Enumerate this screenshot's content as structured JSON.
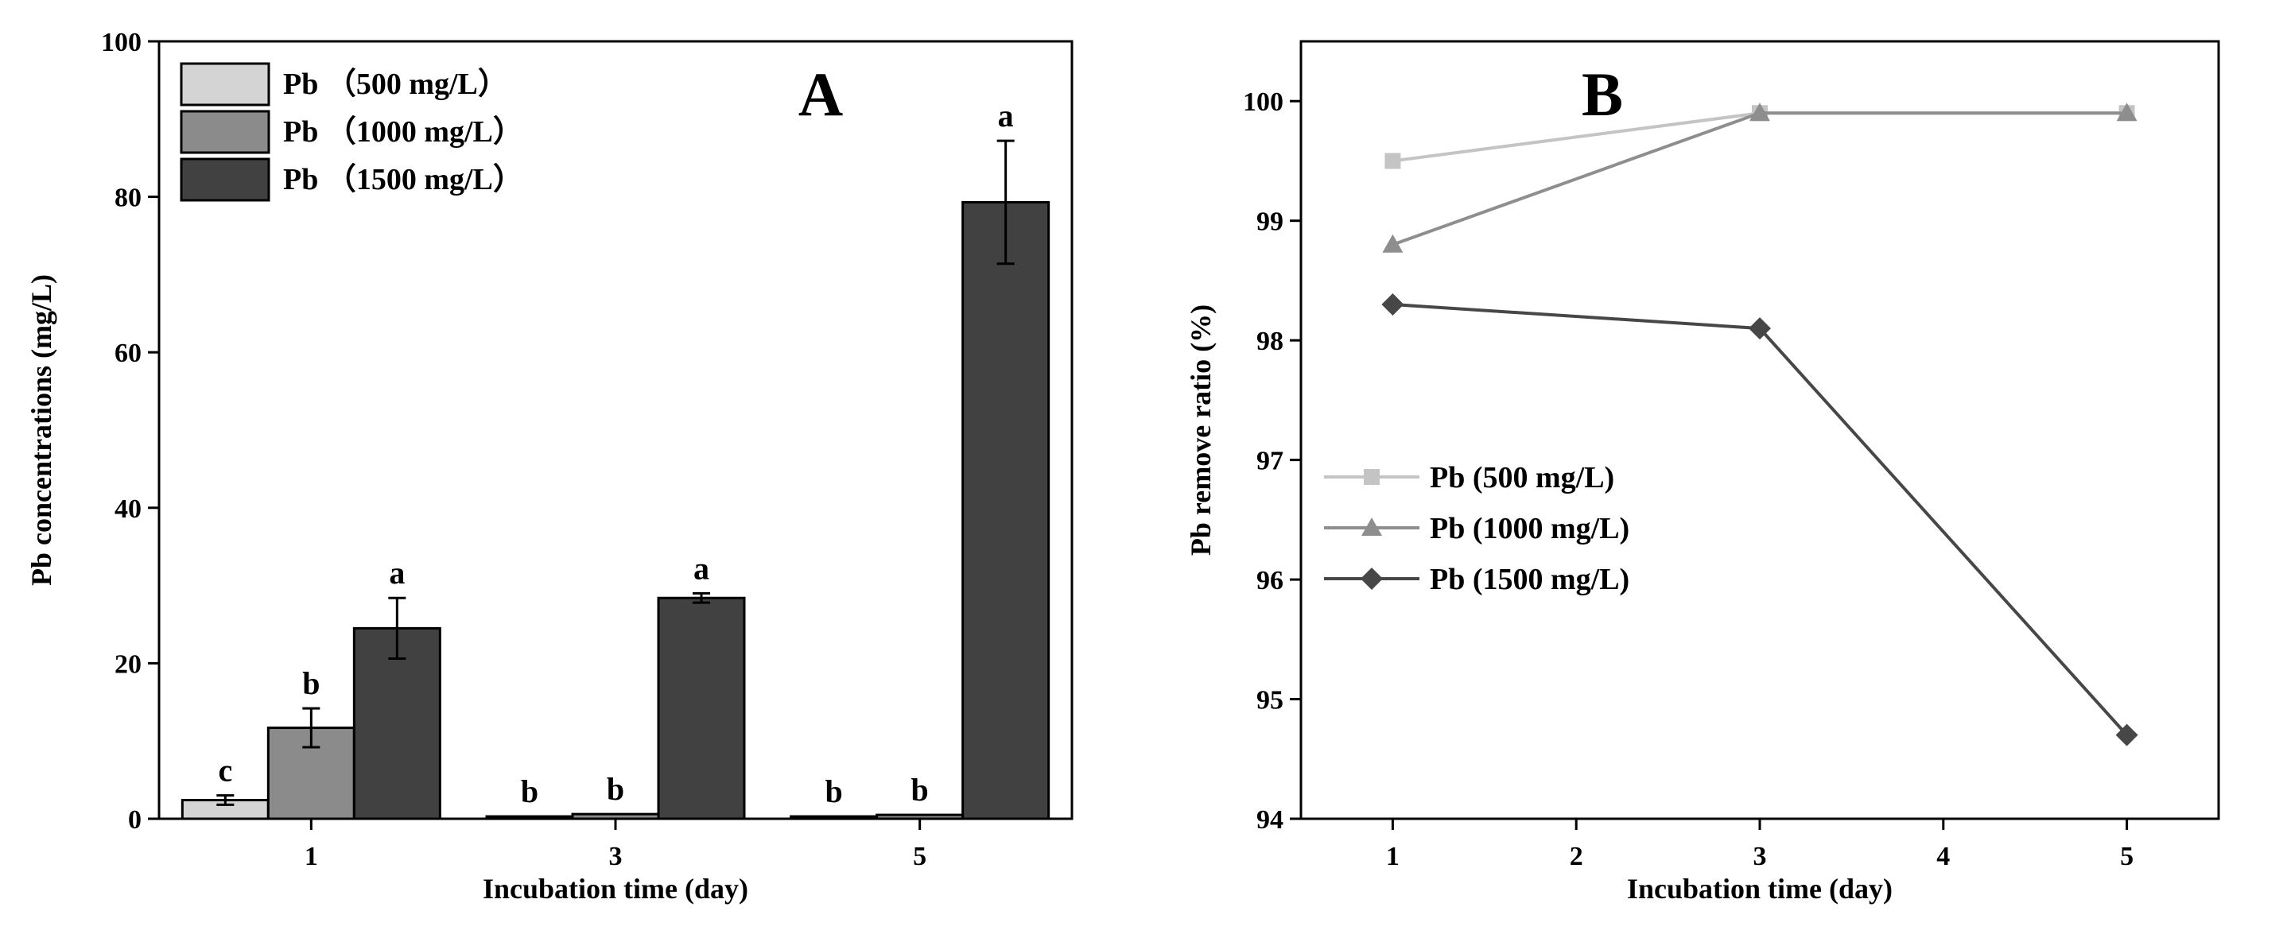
{
  "chart_data": [
    {
      "type": "bar",
      "panel_label": "A",
      "categories": [
        "1",
        "3",
        "5"
      ],
      "xlabel": "Incubation time (day)",
      "ylabel": "Pb concentrations (mg/L)",
      "ylim": [
        0,
        100
      ],
      "yticks": [
        0,
        20,
        40,
        60,
        80,
        100
      ],
      "legend_position": "top-left",
      "series": [
        {
          "name": "Pb （500 mg/L）",
          "color": "#d4d4d4",
          "values": [
            2.4,
            0.3,
            0.3
          ],
          "errors": [
            0.6,
            0,
            0
          ],
          "letters": [
            "c",
            "b",
            "b"
          ]
        },
        {
          "name": "Pb （1000 mg/L）",
          "color": "#8b8b8b",
          "values": [
            11.7,
            0.6,
            0.5
          ],
          "errors": [
            2.5,
            0,
            0
          ],
          "letters": [
            "b",
            "b",
            "b"
          ]
        },
        {
          "name": "Pb （1500 mg/L）",
          "color": "#414141",
          "values": [
            24.5,
            28.4,
            79.3
          ],
          "errors": [
            3.9,
            0.6,
            7.9
          ],
          "letters": [
            "a",
            "a",
            "a"
          ]
        }
      ]
    },
    {
      "type": "line",
      "panel_label": "B",
      "x": [
        1,
        3,
        5
      ],
      "xlabel": "Incubation time (day)",
      "ylabel": "Pb remove ratio (%)",
      "xlim": [
        0.5,
        5.5
      ],
      "xticks": [
        1,
        2,
        3,
        4,
        5
      ],
      "ylim": [
        94,
        100.5
      ],
      "yticks": [
        94,
        95,
        96,
        97,
        98,
        99,
        100
      ],
      "legend_position": "center-left",
      "series": [
        {
          "name": "Pb (500 mg/L)",
          "color": "#c4c4c4",
          "marker": "square",
          "values": [
            99.5,
            99.9,
            99.9
          ]
        },
        {
          "name": "Pb (1000 mg/L)",
          "color": "#8e8e8e",
          "marker": "triangle",
          "values": [
            98.8,
            99.9,
            99.9
          ]
        },
        {
          "name": "Pb (1500 mg/L)",
          "color": "#474747",
          "marker": "diamond",
          "values": [
            98.3,
            98.1,
            94.7
          ]
        }
      ]
    }
  ]
}
